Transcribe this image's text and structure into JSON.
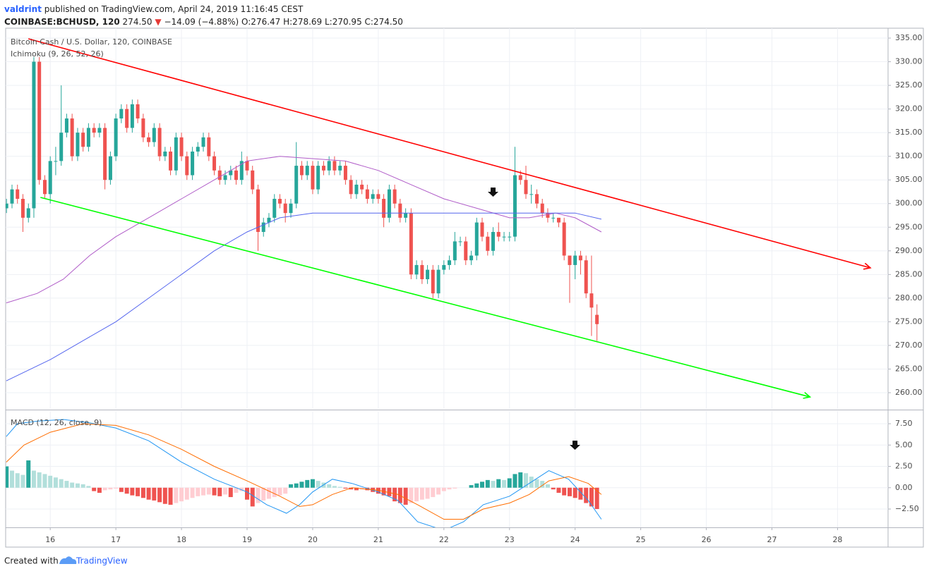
{
  "header": {
    "user": "valdrint",
    "published": "published on TradingView.com, April 24, 2019 11:16:45 CEST",
    "symbol": "COINBASE:BCHUSD, 120",
    "last": "274.50",
    "change_icon": "▼",
    "change": "−14.09 (−4.88%)",
    "ohlc": "O:276.47 H:278.69 L:270.95 C:274.50"
  },
  "footer": {
    "text": "Created with",
    "brand": "TradingView"
  },
  "chart_data": [
    {
      "type": "candlestick",
      "title": "Bitcoin Cash / U.S. Dollar, 120, COINBASE",
      "indicator": "Ichimoku (9, 26, 52, 26)",
      "up_color": "#26a69a",
      "down_color": "#ef5350",
      "x": [
        15.333,
        15.417,
        15.5,
        15.583,
        15.667,
        15.75,
        15.833,
        15.917,
        16,
        16.083,
        16.167,
        16.25,
        16.333,
        16.417,
        16.5,
        16.583,
        16.667,
        16.75,
        16.833,
        16.917,
        17,
        17.083,
        17.167,
        17.25,
        17.333,
        17.417,
        17.5,
        17.583,
        17.667,
        17.75,
        17.833,
        17.917,
        18,
        18.083,
        18.167,
        18.25,
        18.333,
        18.417,
        18.5,
        18.583,
        18.667,
        18.75,
        18.833,
        18.917,
        19,
        19.083,
        19.167,
        19.25,
        19.333,
        19.417,
        19.5,
        19.583,
        19.667,
        19.75,
        19.833,
        19.917,
        20,
        20.083,
        20.167,
        20.25,
        20.333,
        20.417,
        20.5,
        20.583,
        20.667,
        20.75,
        20.833,
        20.917,
        21,
        21.083,
        21.167,
        21.25,
        21.333,
        21.417,
        21.5,
        21.583,
        21.667,
        21.75,
        21.833,
        21.917,
        22,
        22.083,
        22.167,
        22.25,
        22.333,
        22.417,
        22.5,
        22.583,
        22.667,
        22.75,
        22.833,
        22.917,
        23,
        23.083,
        23.167,
        23.25,
        23.333,
        23.417,
        23.5,
        23.583,
        23.667,
        23.75,
        23.833,
        23.917,
        24,
        24.083,
        24.167,
        24.25,
        24.333
      ],
      "open": [
        299,
        300,
        303,
        301,
        297,
        299,
        330,
        305,
        302,
        309,
        309,
        315,
        318,
        310,
        315,
        312,
        316,
        315,
        316,
        305,
        310,
        318,
        320,
        316,
        321,
        318,
        314,
        313,
        316,
        310,
        311,
        307,
        314,
        310,
        306,
        311,
        312,
        314,
        310,
        307,
        305,
        306,
        307,
        305,
        309,
        307,
        303,
        294,
        296,
        297,
        301,
        300,
        298,
        300,
        308,
        306,
        308,
        303,
        308,
        307,
        309,
        307,
        308,
        305,
        302,
        304,
        303,
        301,
        302,
        301,
        297,
        303,
        300,
        297,
        298,
        285,
        287,
        284,
        286,
        281,
        286,
        287,
        288,
        292,
        292,
        288,
        289,
        296,
        293,
        290,
        294,
        293,
        293,
        293,
        306,
        305,
        302,
        302,
        300,
        298,
        297,
        297,
        296,
        289,
        287,
        289,
        288,
        281,
        276.47
      ],
      "high": [
        301,
        304,
        304,
        302,
        300,
        331,
        331,
        306,
        310,
        312,
        325,
        319,
        319,
        316,
        316,
        317,
        317,
        317,
        317,
        311,
        319,
        321,
        321,
        322,
        322,
        319,
        315,
        317,
        317,
        312,
        312,
        315,
        315,
        311,
        312,
        313,
        315,
        315,
        311,
        308,
        307,
        308,
        308,
        311,
        310,
        308,
        304,
        297,
        298,
        302,
        302,
        301,
        301,
        313,
        309,
        309,
        309,
        309,
        309,
        310,
        310,
        309,
        309,
        306,
        305,
        305,
        304,
        303,
        303,
        302,
        304,
        304,
        301,
        299,
        299,
        288,
        288,
        287,
        287,
        287,
        288,
        289,
        294,
        293,
        293,
        290,
        297,
        297,
        294,
        295,
        296,
        294,
        294,
        312,
        307,
        308,
        304,
        303,
        301,
        299,
        298,
        297,
        297,
        289,
        290,
        290,
        289,
        289,
        278.69
      ],
      "low": [
        298,
        299,
        300,
        294,
        296,
        297,
        304,
        301,
        300,
        306,
        308,
        314,
        309,
        309,
        311,
        311,
        314,
        314,
        303,
        304,
        309,
        317,
        315,
        315,
        317,
        313,
        312,
        312,
        309,
        309,
        306,
        306,
        309,
        305,
        305,
        310,
        311,
        309,
        306,
        304,
        304,
        305,
        304,
        304,
        306,
        302,
        290,
        293,
        295,
        296,
        299,
        296,
        297,
        299,
        305,
        305,
        302,
        302,
        306,
        306,
        306,
        306,
        304,
        301,
        301,
        302,
        300,
        300,
        300,
        295,
        296,
        299,
        296,
        296,
        284,
        284,
        283,
        283,
        280,
        280,
        285,
        286,
        287,
        291,
        287,
        287,
        288,
        292,
        289,
        289,
        292,
        292,
        292,
        292,
        304,
        301,
        300,
        299,
        297,
        296,
        296,
        295,
        288,
        279,
        284,
        285,
        280,
        272,
        270.95
      ],
      "close": [
        300,
        303,
        301,
        297,
        299,
        330,
        305,
        302,
        309,
        309,
        315,
        318,
        310,
        315,
        312,
        316,
        315,
        316,
        305,
        310,
        318,
        320,
        316,
        321,
        318,
        314,
        313,
        316,
        310,
        311,
        307,
        314,
        310,
        306,
        311,
        312,
        314,
        310,
        307,
        305,
        306,
        307,
        305,
        309,
        307,
        303,
        294,
        296,
        297,
        301,
        300,
        298,
        300,
        308,
        306,
        308,
        303,
        308,
        307,
        309,
        307,
        308,
        305,
        302,
        304,
        303,
        301,
        302,
        301,
        297,
        303,
        300,
        297,
        298,
        285,
        287,
        284,
        286,
        281,
        286,
        287,
        288,
        292,
        292,
        288,
        289,
        296,
        293,
        290,
        294,
        293,
        293,
        293,
        306,
        305,
        302,
        302,
        300,
        298,
        297,
        297,
        296,
        289,
        287,
        289,
        288,
        281,
        278,
        274.5
      ],
      "lines": [
        {
          "color": "#b05cc8",
          "x": [
            15.33,
            15.8,
            16.2,
            16.6,
            17,
            17.5,
            18,
            18.5,
            19,
            19.5,
            20,
            20.5,
            21,
            21.5,
            22,
            22.5,
            23,
            23.3,
            23.7,
            24,
            24.4
          ],
          "values": [
            279,
            281,
            284,
            289,
            293,
            297,
            301,
            305,
            309,
            310,
            309.5,
            309,
            307,
            304,
            301,
            299,
            297,
            297,
            298,
            297,
            294
          ]
        },
        {
          "color": "#5566ee",
          "x": [
            15.33,
            16,
            16.5,
            17,
            17.5,
            18,
            18.5,
            19,
            19.5,
            20,
            20.5,
            21,
            22,
            23,
            23.5,
            24,
            24.4
          ],
          "values": [
            262.5,
            267,
            271,
            275,
            280,
            285,
            290,
            294,
            297,
            298,
            298,
            298,
            298,
            298,
            298,
            298,
            296.7
          ]
        }
      ],
      "trendlines": [
        {
          "color": "#ff0000",
          "x": [
            15.666,
            28.5
          ],
          "y": [
            334.85,
            286.4
          ]
        },
        {
          "color": "#00ff00",
          "x": [
            15.85,
            27.58
          ],
          "y": [
            301.3,
            259.1
          ]
        }
      ],
      "xlim": [
        15.32,
        28.77
      ],
      "xticks": [
        16,
        17,
        18,
        19,
        20,
        21,
        22,
        23,
        24,
        25,
        26,
        27,
        28
      ],
      "ylim": [
        256.57,
        337.09
      ],
      "yticks": [
        {
          "value": 260,
          "label": "260.00"
        },
        {
          "value": 265,
          "label": "265.00"
        },
        {
          "value": 270,
          "label": "270.00"
        },
        {
          "value": 275,
          "label": "275.00"
        },
        {
          "value": 280,
          "label": "280.00"
        },
        {
          "value": 285,
          "label": "285.00"
        },
        {
          "value": 290,
          "label": "290.00"
        },
        {
          "value": 295,
          "label": "295.00"
        },
        {
          "value": 300,
          "label": "300.00"
        },
        {
          "value": 305,
          "label": "305.00"
        },
        {
          "value": 310,
          "label": "310.00"
        },
        {
          "value": 315,
          "label": "315.00"
        },
        {
          "value": 320,
          "label": "320.00"
        },
        {
          "value": 325,
          "label": "325.00"
        },
        {
          "value": 330,
          "label": "330.00"
        },
        {
          "value": 335,
          "label": "335.00"
        }
      ],
      "grid": true
    },
    {
      "type": "macd",
      "title": "MACD (12, 26, close, 9)",
      "histogram": {
        "colors": {
          "up_grow": "#26a69a",
          "up_fall": "#b2dfdb",
          "down_fall": "#ef5350",
          "down_rise": "#ffcdd2"
        },
        "values": [
          2.5,
          2.0,
          1.7,
          1.5,
          3.2,
          2.0,
          1.8,
          1.6,
          1.4,
          1.2,
          1.0,
          0.8,
          0.6,
          0.5,
          0.4,
          0.2,
          -0.4,
          -0.6,
          -0.3,
          -0.2,
          -0.1,
          -0.5,
          -0.7,
          -0.9,
          -1.0,
          -1.2,
          -1.4,
          -1.5,
          -1.7,
          -1.9,
          -2.0,
          -1.8,
          -1.6,
          -1.4,
          -1.2,
          -1.0,
          -0.9,
          -0.8,
          -0.9,
          -1.0,
          -0.8,
          -1.1,
          -0.6,
          -0.4,
          -1.4,
          -2.2,
          -1.8,
          -1.5,
          -1.3,
          -1.1,
          -0.9,
          -0.7,
          0.4,
          0.5,
          0.7,
          0.9,
          1.0,
          0.8,
          0.6,
          0.4,
          0.2,
          0.1,
          -0.1,
          -0.2,
          -0.3,
          -0.2,
          -0.3,
          -0.5,
          -0.7,
          -0.9,
          -1.0,
          -1.6,
          -1.8,
          -2.0,
          -1.8,
          -1.6,
          -1.4,
          -1.3,
          -1.1,
          -0.8,
          -0.4,
          -0.2,
          -0.1,
          0,
          0,
          0.3,
          0.5,
          0.7,
          0.9,
          0.8,
          1.0,
          0.9,
          1.1,
          1.6,
          1.8,
          1.7,
          1.3,
          1.0,
          0.8,
          0.4,
          -0.2,
          -0.6,
          -0.9,
          -1.0,
          -1.2,
          -1.4,
          -1.8,
          -2.2,
          -2.5
        ]
      },
      "lines": [
        {
          "color": "#2196f3",
          "x": [
            15.33,
            15.5,
            15.8,
            16.2,
            16.6,
            17,
            17.5,
            18,
            18.5,
            19,
            19.3,
            19.6,
            19.8,
            20,
            20.3,
            20.6,
            21,
            21.3,
            21.6,
            22,
            22.3,
            22.6,
            23,
            23.3,
            23.6,
            23.9,
            24.2,
            24.4
          ],
          "values": [
            6.0,
            7.5,
            7.8,
            8.0,
            7.6,
            7.0,
            5.5,
            3.0,
            1.0,
            -0.5,
            -2.0,
            -3.0,
            -2.0,
            -0.5,
            1.0,
            0.5,
            -0.5,
            -1.5,
            -4.0,
            -5,
            -4.0,
            -2.0,
            -1.0,
            0.5,
            2.0,
            1.0,
            -1.5,
            -3.7
          ]
        },
        {
          "color": "#ff6d00",
          "x": [
            15.33,
            15.6,
            16,
            16.5,
            17,
            17.5,
            18,
            18.5,
            19,
            19.5,
            19.8,
            20,
            20.3,
            20.6,
            21,
            21.3,
            21.6,
            22,
            22.3,
            22.6,
            23,
            23.3,
            23.6,
            23.9,
            24.2,
            24.4
          ],
          "values": [
            3.0,
            5.0,
            6.5,
            7.5,
            7.3,
            6.2,
            4.5,
            2.5,
            0.8,
            -1.0,
            -2.2,
            -2.0,
            -0.8,
            0,
            -0.3,
            -0.8,
            -2.0,
            -3.7,
            -3.7,
            -2.5,
            -1.8,
            -0.8,
            0.8,
            1.3,
            0.5,
            -0.8
          ]
        }
      ],
      "ylim": [
        -4.65,
        8.99
      ],
      "yticks": [
        {
          "value": -2.5,
          "label": "−2.50"
        },
        {
          "value": 0,
          "label": "0.00"
        },
        {
          "value": 2.5,
          "label": "2.50"
        },
        {
          "value": 5,
          "label": "5.00"
        },
        {
          "value": 7.5,
          "label": "7.50"
        }
      ],
      "grid": true
    }
  ]
}
